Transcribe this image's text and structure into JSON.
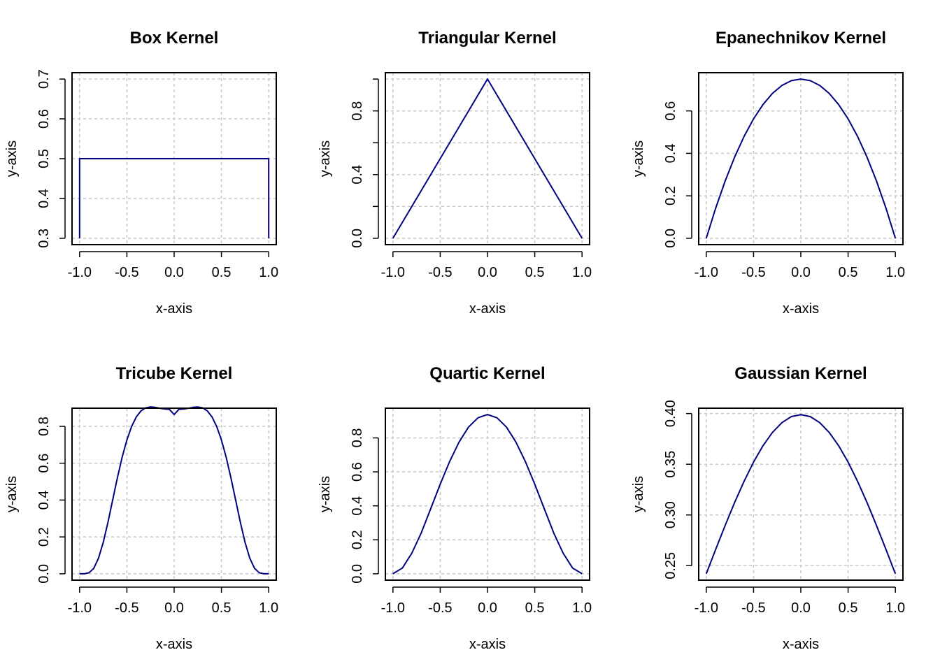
{
  "figure": {
    "background_color": "#ffffff",
    "line_color": "#000080",
    "grid_color": "#c8c8c8"
  },
  "chart_data": [
    {
      "type": "line",
      "title": "Box Kernel",
      "xlabel": "x-axis",
      "ylabel": "y-axis",
      "xlim": [
        -1.0,
        1.0
      ],
      "ylim": [
        0.3,
        0.7
      ],
      "xticks": [
        "-1.0",
        "-0.5",
        "0.0",
        "0.5",
        "1.0"
      ],
      "xtick_values": [
        -1.0,
        -0.5,
        0.0,
        0.5,
        1.0
      ],
      "yticks": [
        "0.3",
        "0.4",
        "0.5",
        "0.6",
        "0.7"
      ],
      "ytick_values": [
        0.3,
        0.4,
        0.5,
        0.6,
        0.7
      ],
      "grid": true,
      "series": [
        {
          "x": [
            -1.0,
            -1.0,
            1.0,
            1.0
          ],
          "y": [
            0.3,
            0.5,
            0.5,
            0.3
          ]
        }
      ]
    },
    {
      "type": "line",
      "title": "Triangular Kernel",
      "xlabel": "x-axis",
      "ylabel": "y-axis",
      "xlim": [
        -1.0,
        1.0
      ],
      "ylim": [
        0.0,
        1.0
      ],
      "xticks": [
        "-1.0",
        "-0.5",
        "0.0",
        "0.5",
        "1.0"
      ],
      "xtick_values": [
        -1.0,
        -0.5,
        0.0,
        0.5,
        1.0
      ],
      "yticks": [
        "0.0",
        "",
        "0.4",
        "",
        "0.8",
        ""
      ],
      "ytick_values": [
        0.0,
        0.2,
        0.4,
        0.6,
        0.8,
        1.0
      ],
      "grid": true,
      "series": [
        {
          "x": [
            -1.0,
            -0.5,
            0.0,
            0.5,
            1.0
          ],
          "y": [
            0.0,
            0.5,
            1.0,
            0.5,
            0.0
          ]
        }
      ]
    },
    {
      "type": "line",
      "title": "Epanechnikov Kernel",
      "xlabel": "x-axis",
      "ylabel": "y-axis",
      "xlim": [
        -1.0,
        1.0
      ],
      "ylim": [
        0.0,
        0.75
      ],
      "xticks": [
        "-1.0",
        "-0.5",
        "0.0",
        "0.5",
        "1.0"
      ],
      "xtick_values": [
        -1.0,
        -0.5,
        0.0,
        0.5,
        1.0
      ],
      "yticks": [
        "0.0",
        "0.2",
        "0.4",
        "0.6"
      ],
      "ytick_values": [
        0.0,
        0.2,
        0.4,
        0.6
      ],
      "grid": true,
      "series": [
        {
          "x": [
            -1.0,
            -0.9,
            -0.8,
            -0.7,
            -0.6,
            -0.5,
            -0.4,
            -0.3,
            -0.2,
            -0.1,
            0.0,
            0.1,
            0.2,
            0.3,
            0.4,
            0.5,
            0.6,
            0.7,
            0.8,
            0.9,
            1.0
          ],
          "y": [
            0.0,
            0.1425,
            0.27,
            0.3825,
            0.48,
            0.5625,
            0.63,
            0.6825,
            0.72,
            0.7425,
            0.75,
            0.7425,
            0.72,
            0.6825,
            0.63,
            0.5625,
            0.48,
            0.3825,
            0.27,
            0.1425,
            0.0
          ]
        }
      ]
    },
    {
      "type": "line",
      "title": "Tricube Kernel",
      "xlabel": "x-axis",
      "ylabel": "y-axis",
      "xlim": [
        -1.0,
        1.0
      ],
      "ylim": [
        0.0,
        0.864
      ],
      "xticks": [
        "-1.0",
        "-0.5",
        "0.0",
        "0.5",
        "1.0"
      ],
      "xtick_values": [
        -1.0,
        -0.5,
        0.0,
        0.5,
        1.0
      ],
      "yticks": [
        "0.0",
        "0.2",
        "0.4",
        "0.6",
        "0.8"
      ],
      "ytick_values": [
        0.0,
        0.2,
        0.4,
        0.6,
        0.8
      ],
      "grid": true,
      "series": [
        {
          "x": [
            -1.0,
            -0.95,
            -0.9,
            -0.85,
            -0.8,
            -0.75,
            -0.7,
            -0.65,
            -0.6,
            -0.55,
            -0.5,
            -0.45,
            -0.4,
            -0.35,
            -0.3,
            -0.25,
            -0.2,
            -0.15,
            -0.1,
            -0.05,
            0.0,
            0.05,
            0.1,
            0.15,
            0.2,
            0.25,
            0.3,
            0.35,
            0.4,
            0.45,
            0.5,
            0.55,
            0.6,
            0.65,
            0.7,
            0.75,
            0.8,
            0.85,
            0.9,
            0.95,
            1.0
          ],
          "y": [
            0.0,
            0.0,
            0.0055,
            0.0296,
            0.0845,
            0.1701,
            0.2796,
            0.4009,
            0.5218,
            0.6324,
            0.7261,
            0.7993,
            0.8516,
            0.8843,
            0.9006,
            0.9054,
            0.9031,
            0.8981,
            0.8941,
            0.8923,
            0.8642,
            0.8923,
            0.8941,
            0.8981,
            0.9031,
            0.9054,
            0.9006,
            0.8843,
            0.8516,
            0.7993,
            0.7261,
            0.6324,
            0.5218,
            0.4009,
            0.2796,
            0.1701,
            0.0845,
            0.0296,
            0.0055,
            0.0,
            0.0
          ]
        }
      ]
    },
    {
      "type": "line",
      "title": "Quartic Kernel",
      "xlabel": "x-axis",
      "ylabel": "y-axis",
      "xlim": [
        -1.0,
        1.0
      ],
      "ylim": [
        0.0,
        0.9375
      ],
      "xticks": [
        "-1.0",
        "-0.5",
        "0.0",
        "0.5",
        "1.0"
      ],
      "xtick_values": [
        -1.0,
        -0.5,
        0.0,
        0.5,
        1.0
      ],
      "yticks": [
        "0.0",
        "0.2",
        "0.4",
        "0.6",
        "0.8"
      ],
      "ytick_values": [
        0.0,
        0.2,
        0.4,
        0.6,
        0.8
      ],
      "grid": true,
      "series": [
        {
          "x": [
            -1.0,
            -0.9,
            -0.8,
            -0.7,
            -0.6,
            -0.5,
            -0.4,
            -0.3,
            -0.2,
            -0.1,
            0.0,
            0.1,
            0.2,
            0.3,
            0.4,
            0.5,
            0.6,
            0.7,
            0.8,
            0.9,
            1.0
          ],
          "y": [
            0.0,
            0.0338,
            0.1215,
            0.2412,
            0.384,
            0.5273,
            0.6615,
            0.7762,
            0.864,
            0.9188,
            0.9375,
            0.9188,
            0.864,
            0.7762,
            0.6615,
            0.5273,
            0.384,
            0.2412,
            0.1215,
            0.0338,
            0.0
          ]
        }
      ]
    },
    {
      "type": "line",
      "title": "Gaussian Kernel",
      "xlabel": "x-axis",
      "ylabel": "y-axis",
      "xlim": [
        -1.0,
        1.0
      ],
      "ylim": [
        0.242,
        0.399
      ],
      "xticks": [
        "-1.0",
        "-0.5",
        "0.0",
        "0.5",
        "1.0"
      ],
      "xtick_values": [
        -1.0,
        -0.5,
        0.0,
        0.5,
        1.0
      ],
      "yticks": [
        "0.25",
        "0.30",
        "0.35",
        "0.40"
      ],
      "ytick_values": [
        0.25,
        0.3,
        0.35,
        0.4
      ],
      "grid": true,
      "series": [
        {
          "x": [
            -1.0,
            -0.9,
            -0.8,
            -0.7,
            -0.6,
            -0.5,
            -0.4,
            -0.3,
            -0.2,
            -0.1,
            0.0,
            0.1,
            0.2,
            0.3,
            0.4,
            0.5,
            0.6,
            0.7,
            0.8,
            0.9,
            1.0
          ],
          "y": [
            0.242,
            0.2661,
            0.2897,
            0.3123,
            0.3332,
            0.3521,
            0.3683,
            0.3814,
            0.391,
            0.397,
            0.3989,
            0.397,
            0.391,
            0.3814,
            0.3683,
            0.3521,
            0.3332,
            0.3123,
            0.2897,
            0.2661,
            0.242
          ]
        }
      ]
    }
  ]
}
